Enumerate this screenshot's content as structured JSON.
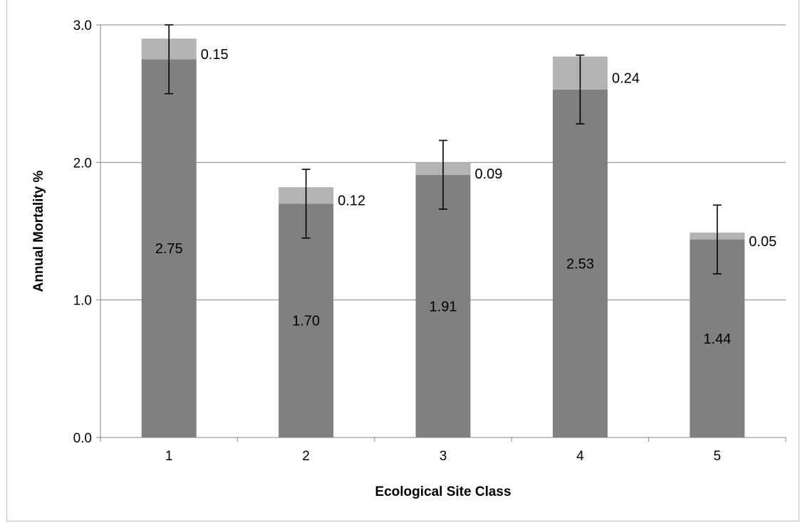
{
  "chart_data": {
    "type": "bar",
    "stacked": true,
    "title": "",
    "xlabel": "Ecological Site Class",
    "ylabel": "Annual Mortality %",
    "categories": [
      "1",
      "2",
      "3",
      "4",
      "5"
    ],
    "series": [
      {
        "values": [
          2.75,
          1.7,
          1.91,
          2.53,
          1.44
        ],
        "labels": [
          "2.75",
          "1.70",
          "1.91",
          "2.53",
          "1.44"
        ],
        "color": "#808080"
      },
      {
        "values": [
          0.15,
          0.12,
          0.09,
          0.24,
          0.05
        ],
        "labels": [
          "0.15",
          "0.12",
          "0.09",
          "0.24",
          "0.05"
        ],
        "color": "#b3b3b3"
      }
    ],
    "error_bars": {
      "center": [
        2.75,
        1.7,
        1.91,
        2.53,
        1.44
      ],
      "plus_minus": [
        0.25,
        0.25,
        0.25,
        0.25,
        0.25
      ],
      "color": "#000000"
    },
    "ylim": [
      0,
      3.0
    ],
    "yticks": [
      "0.0",
      "1.0",
      "2.0",
      "3.0"
    ],
    "grid": true,
    "legend": "none"
  }
}
